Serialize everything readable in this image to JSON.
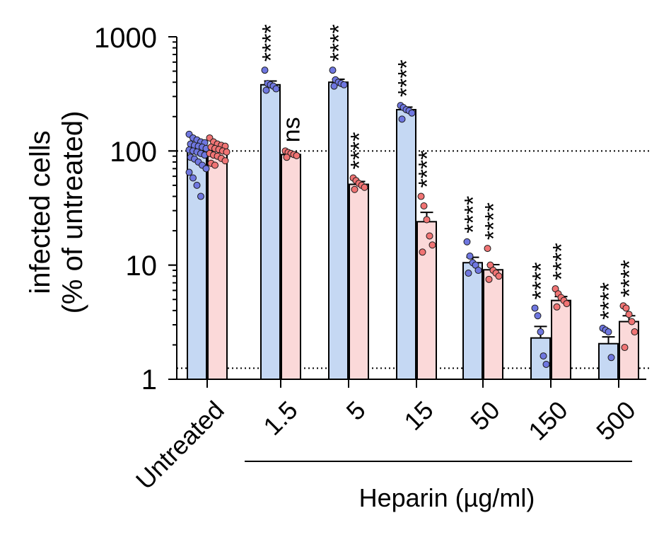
{
  "chart_data": {
    "type": "bar",
    "scale": "log",
    "ylim": [
      1,
      1000
    ],
    "y_ticks": [
      "1",
      "10",
      "100",
      "1000"
    ],
    "ylabel_lines": [
      "infected cells",
      "(% of untreated)"
    ],
    "x_group_label": "Heparin (µg/ml)",
    "categories": [
      "Untreated",
      "1.5",
      "5",
      "15",
      "50",
      "150",
      "500"
    ],
    "reference_lines": [
      100,
      1.25
    ],
    "colors": {
      "blue_fill": "#c5d8f3",
      "blue_point": "#6f77e0",
      "red_fill": "#fbd9d9",
      "red_point": "#f07474"
    },
    "series": [
      {
        "color_key": "blue",
        "values": [
          100,
          380,
          400,
          230,
          10.5,
          2.3,
          2.05
        ],
        "errors": [
          6,
          30,
          25,
          12,
          1.2,
          0.6,
          0.3
        ],
        "points": [
          [
            140,
            130,
            125,
            120,
            118,
            115,
            112,
            110,
            108,
            105,
            102,
            100,
            98,
            95,
            92,
            88,
            85,
            80,
            75,
            70,
            65,
            58,
            50,
            40
          ],
          [
            510,
            390,
            380,
            370,
            350,
            340
          ],
          [
            510,
            420,
            400,
            390,
            380,
            370
          ],
          [
            250,
            240,
            230,
            225,
            215,
            190
          ],
          [
            16,
            12,
            10.5,
            10,
            9,
            8.5
          ],
          [
            4.2,
            3.6,
            2.6,
            1.6,
            1.35
          ],
          [
            2.8,
            2.7,
            2.6,
            1.55
          ]
        ],
        "significance": [
          "",
          "****",
          "****",
          "****",
          "****",
          "****",
          "****"
        ]
      },
      {
        "color_key": "red",
        "values": [
          100,
          93,
          51,
          24,
          9.1,
          4.9,
          3.2
        ],
        "errors": [
          5,
          4,
          3,
          5,
          1,
          0.4,
          0.4
        ],
        "points": [
          [
            130,
            120,
            115,
            112,
            110,
            108,
            105,
            103,
            100,
            98,
            95,
            92,
            90,
            86,
            82,
            78,
            75
          ],
          [
            100,
            97,
            95,
            93,
            91,
            88
          ],
          [
            58,
            55,
            52,
            50,
            48,
            46
          ],
          [
            40,
            33,
            25,
            18,
            15,
            13
          ],
          [
            14,
            10,
            9,
            8.5,
            8,
            7.5
          ],
          [
            6.2,
            5.6,
            5.2,
            4.9,
            4.6,
            4.3
          ],
          [
            4.4,
            4.2,
            3.7,
            3.2,
            2.6,
            1.9
          ]
        ],
        "significance": [
          "",
          "ns",
          "****",
          "****",
          "****",
          "****",
          "****"
        ]
      }
    ]
  }
}
